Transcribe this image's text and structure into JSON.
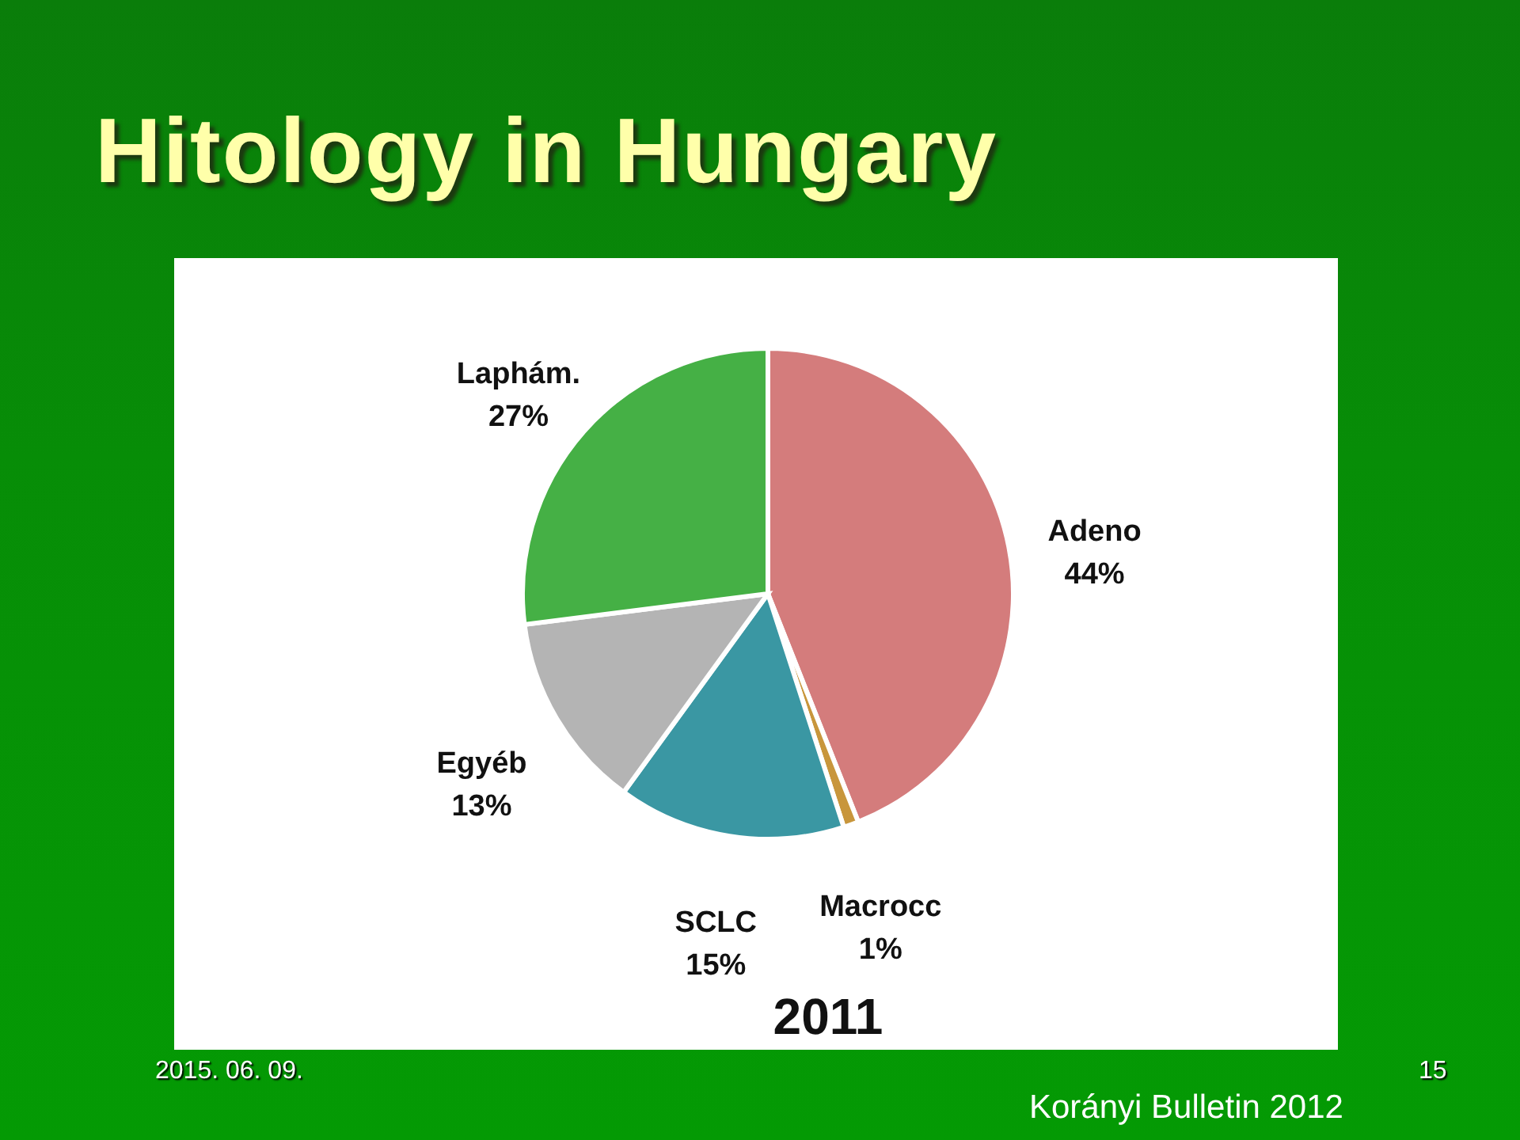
{
  "chart_data": {
    "type": "pie",
    "title": "Hitology in Hungary",
    "subtitle": "2011",
    "categories": [
      "Adeno",
      "Macrocc",
      "SCLC",
      "Egyéb",
      "Laphám."
    ],
    "values": [
      44,
      1,
      15,
      13,
      27
    ],
    "value_labels": [
      "44%",
      "1%",
      "15%",
      "13%",
      "27%"
    ],
    "colors": [
      "#d47c7c",
      "#c8963c",
      "#3a97a3",
      "#b4b4b4",
      "#45b045"
    ],
    "annotations": [
      "2015. 06. 09.",
      "15",
      "Korányi Bulletin 2012"
    ]
  }
}
